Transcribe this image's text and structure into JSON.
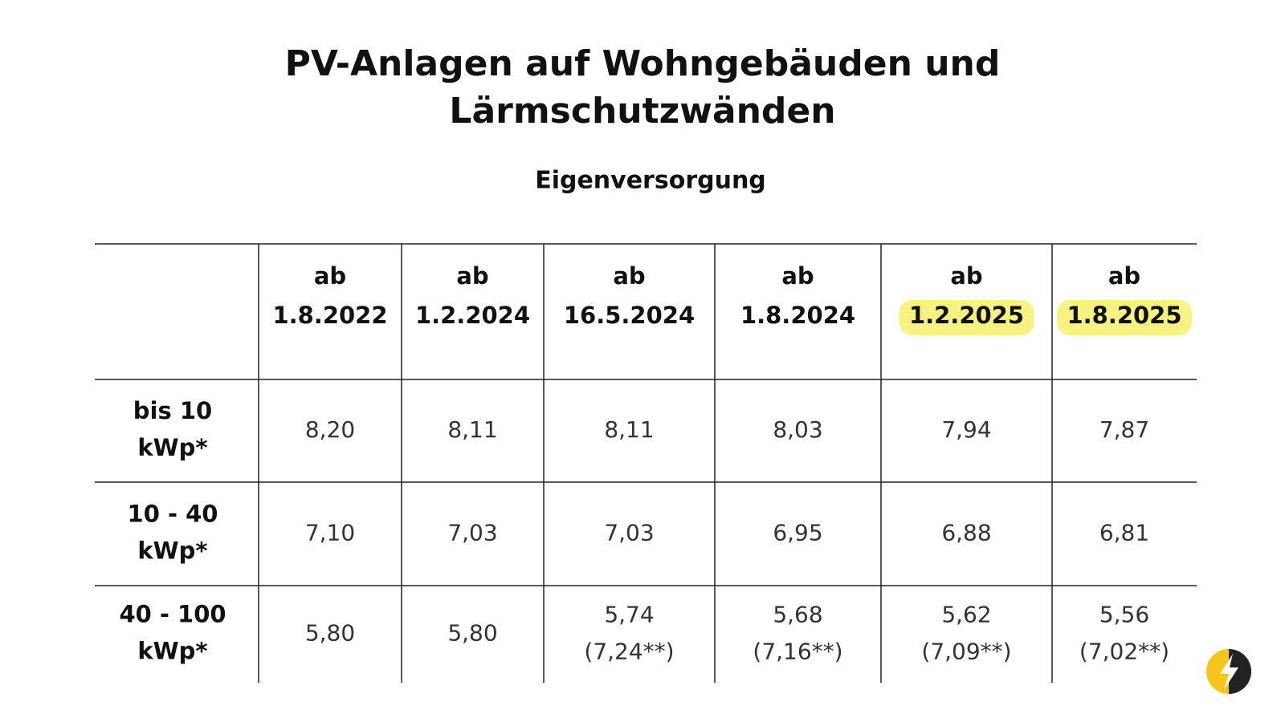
{
  "title": [
    "PV-Anlagen auf Wohngebäuden und",
    "Lärmschutzwänden"
  ],
  "subtitle": "Eigenversorgung",
  "table": {
    "columns": [
      {
        "prefix": "ab",
        "date": "1.8.2022"
      },
      {
        "prefix": "ab",
        "date": "1.2.2024"
      },
      {
        "prefix": "ab",
        "date": "16.5.2024"
      },
      {
        "prefix": "ab",
        "date": "1.8.2024"
      },
      {
        "prefix": "ab",
        "date": "1.2.2025",
        "highlight": true
      },
      {
        "prefix": "ab",
        "date": "1.8.2025",
        "highlight": true
      }
    ],
    "rows": [
      {
        "label": [
          "bis 10",
          "kWp*"
        ],
        "cells": [
          [
            "8,20"
          ],
          [
            "8,11"
          ],
          [
            "8,11"
          ],
          [
            "8,03"
          ],
          [
            "7,94"
          ],
          [
            "7,87"
          ]
        ]
      },
      {
        "label": [
          "10 - 40",
          "kWp*"
        ],
        "cells": [
          [
            "7,10"
          ],
          [
            "7,03"
          ],
          [
            "7,03"
          ],
          [
            "6,95"
          ],
          [
            "6,88"
          ],
          [
            "6,81"
          ]
        ]
      },
      {
        "label": [
          "40 - 100",
          "kWp*"
        ],
        "cells": [
          [
            "5,80"
          ],
          [
            "5,80"
          ],
          [
            "5,74",
            "(7,24**)"
          ],
          [
            "5,68",
            "(7,16**)"
          ],
          [
            "5,62",
            "(7,09**)"
          ],
          [
            "5,56",
            "(7,02**)"
          ]
        ]
      }
    ]
  }
}
